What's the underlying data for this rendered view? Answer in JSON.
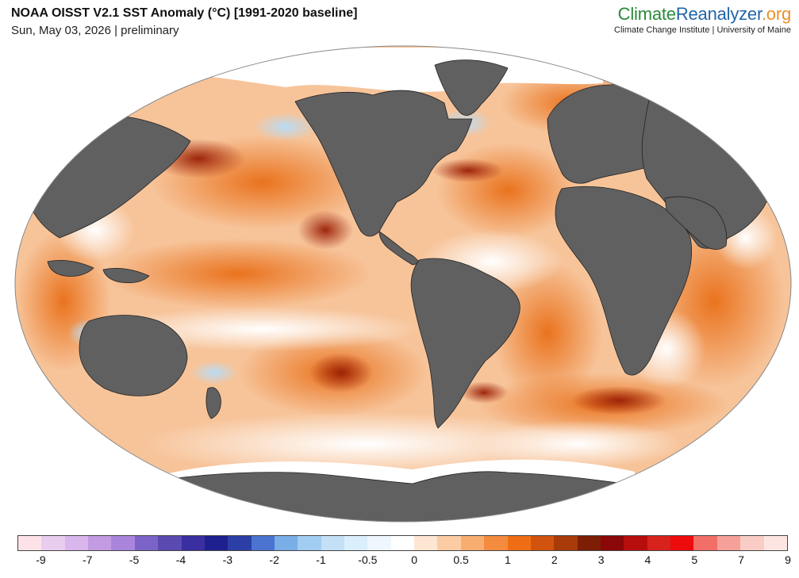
{
  "header": {
    "title": "NOAA OISST V2.1 SST Anomaly (°C) [1991-2020 baseline]",
    "subtitle": "Sun, May 03, 2026 | preliminary"
  },
  "brand": {
    "part1": "Climate",
    "part2": "Reanalyzer",
    "part3": ".org",
    "tagline": "Climate Change Institute | University of Maine"
  },
  "map": {
    "projection": "Robinson",
    "ocean_base_color": "#f7c49a",
    "land_color": "#606060",
    "sea_ice_color": "#ffffff",
    "warm_accent": "#e86a10",
    "hot_accent": "#9a1e05",
    "cool_accent": "#b9dcf5"
  },
  "colorbar": {
    "colors": [
      "#fde3e8",
      "#e8cdef",
      "#d9b6eb",
      "#c29be3",
      "#a985dc",
      "#7c63c8",
      "#5a4ab2",
      "#3a2fa0",
      "#1f2090",
      "#2b3fa6",
      "#4b73d0",
      "#79aee6",
      "#a2cdf2",
      "#c3e0f7",
      "#dbeefb",
      "#eef7fd",
      "#ffffff",
      "#fde6d2",
      "#fbcca4",
      "#f8ad70",
      "#f48b3f",
      "#ef6e14",
      "#d2530d",
      "#a93a09",
      "#7e1e05",
      "#8c0708",
      "#b80d0d",
      "#d8221d",
      "#ee0b0b",
      "#f26f67",
      "#f5a19a",
      "#f9cdc6",
      "#fde6e1"
    ],
    "tick_labels": [
      "-9",
      "-7",
      "-5",
      "-4",
      "-3",
      "-2",
      "-1",
      "-0.5",
      "0",
      "0.5",
      "1",
      "2",
      "3",
      "4",
      "5",
      "7",
      "9"
    ]
  }
}
